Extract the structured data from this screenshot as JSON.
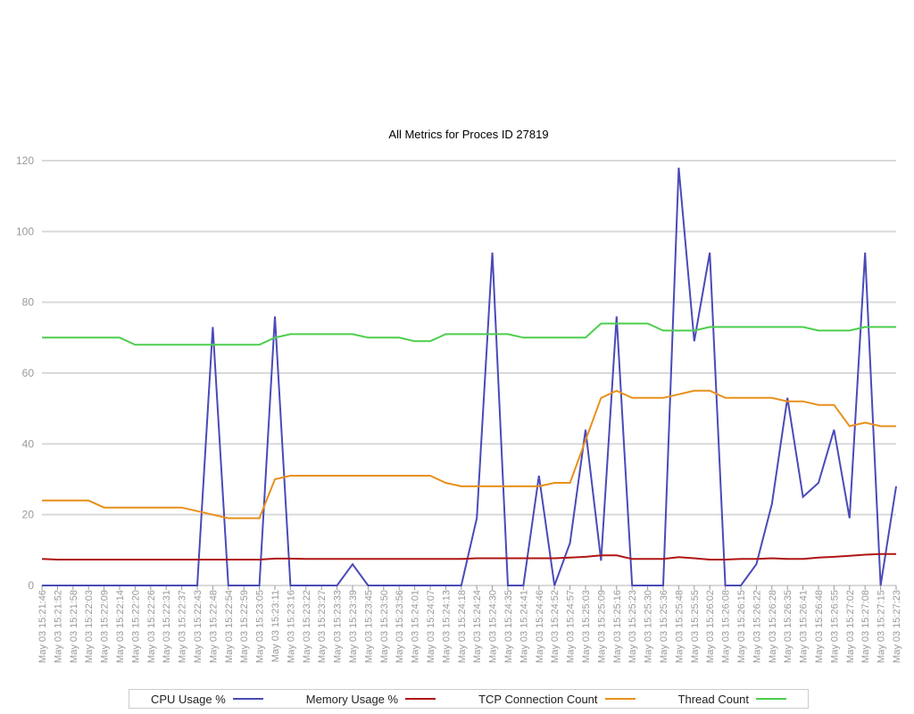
{
  "chart_data": {
    "type": "line",
    "title": "All Metrics for Proces ID 27819",
    "xlabel": "",
    "ylabel": "",
    "ylim": [
      0,
      120
    ],
    "yticks": [
      0,
      20,
      40,
      60,
      80,
      100,
      120
    ],
    "grid": true,
    "legend_position": "bottom",
    "categories": [
      "May 03 15:21:46",
      "May 03 15:21:52",
      "May 03 15:21:58",
      "May 03 15:22:03",
      "May 03 15:22:09",
      "May 03 15:22:14",
      "May 03 15:22:20",
      "May 03 15:22:26",
      "May 03 15:22:31",
      "May 03 15:22:37",
      "May 03 15:22:43",
      "May 03 15:22:48",
      "May 03 15:22:54",
      "May 03 15:22:59",
      "May 03 15:23:05",
      "May 03 15:23:11",
      "May 03 15:23:16",
      "May 03 15:23:22",
      "May 03 15:23:27",
      "May 03 15:23:33",
      "May 03 15:23:39",
      "May 03 15:23:45",
      "May 03 15:23:50",
      "May 03 15:23:56",
      "May 03 15:24:01",
      "May 03 15:24:07",
      "May 03 15:24:13",
      "May 03 15:24:18",
      "May 03 15:24:24",
      "May 03 15:24:30",
      "May 03 15:24:35",
      "May 03 15:24:41",
      "May 03 15:24:46",
      "May 03 15:24:52",
      "May 03 15:24:57",
      "May 03 15:25:03",
      "May 03 15:25:09",
      "May 03 15:25:16",
      "May 03 15:25:23",
      "May 03 15:25:30",
      "May 03 15:25:36",
      "May 03 15:25:48",
      "May 03 15:25:55",
      "May 03 15:26:02",
      "May 03 15:26:08",
      "May 03 15:26:15",
      "May 03 15:26:22",
      "May 03 15:26:28",
      "May 03 15:26:35",
      "May 03 15:26:41",
      "May 03 15:26:48",
      "May 03 15:26:55",
      "May 03 15:27:02",
      "May 03 15:27:08",
      "May 03 15:27:15",
      "May 03 15:27:23"
    ],
    "series": [
      {
        "name": "CPU Usage %",
        "color": "#4a4ab8",
        "values": [
          0,
          0,
          0,
          0,
          0,
          0,
          0,
          0,
          0,
          0,
          0,
          73,
          0,
          0,
          0,
          76,
          0,
          0,
          0,
          0,
          6,
          0,
          0,
          0,
          0,
          0,
          0,
          0,
          19,
          94,
          0,
          0,
          31,
          0,
          12,
          44,
          7,
          76,
          0,
          0,
          0,
          118,
          69,
          94,
          0,
          0,
          6,
          23,
          53,
          25,
          29,
          44,
          19,
          94,
          0,
          28
        ]
      },
      {
        "name": "Memory Usage %",
        "color": "#b01414",
        "values": [
          7.5,
          7.3,
          7.3,
          7.3,
          7.3,
          7.3,
          7.3,
          7.3,
          7.3,
          7.3,
          7.3,
          7.3,
          7.3,
          7.3,
          7.3,
          7.6,
          7.6,
          7.5,
          7.5,
          7.5,
          7.5,
          7.5,
          7.5,
          7.5,
          7.5,
          7.5,
          7.5,
          7.5,
          7.7,
          7.7,
          7.7,
          7.7,
          7.7,
          7.7,
          7.9,
          8.1,
          8.5,
          8.5,
          7.5,
          7.5,
          7.5,
          8.0,
          7.7,
          7.3,
          7.3,
          7.5,
          7.5,
          7.7,
          7.5,
          7.5,
          7.9,
          8.1,
          8.4,
          8.7,
          8.9,
          8.9
        ]
      },
      {
        "name": "TCP Connection Count",
        "color": "#e8901c",
        "values": [
          24,
          24,
          24,
          24,
          22,
          22,
          22,
          22,
          22,
          22,
          21,
          20,
          19,
          19,
          19,
          30,
          31,
          31,
          31,
          31,
          31,
          31,
          31,
          31,
          31,
          31,
          29,
          28,
          28,
          28,
          28,
          28,
          28,
          29,
          29,
          41,
          53,
          55,
          53,
          53,
          53,
          54,
          55,
          55,
          53,
          53,
          53,
          53,
          52,
          52,
          51,
          51,
          45,
          46,
          45,
          45
        ]
      },
      {
        "name": "Thread Count",
        "color": "#4cce4c",
        "values": [
          70,
          70,
          70,
          70,
          70,
          70,
          68,
          68,
          68,
          68,
          68,
          68,
          68,
          68,
          68,
          70,
          71,
          71,
          71,
          71,
          71,
          70,
          70,
          70,
          69,
          69,
          71,
          71,
          71,
          71,
          71,
          70,
          70,
          70,
          70,
          70,
          74,
          74,
          74,
          74,
          72,
          72,
          72,
          73,
          73,
          73,
          73,
          73,
          73,
          73,
          72,
          72,
          72,
          73,
          73,
          73
        ]
      }
    ]
  }
}
